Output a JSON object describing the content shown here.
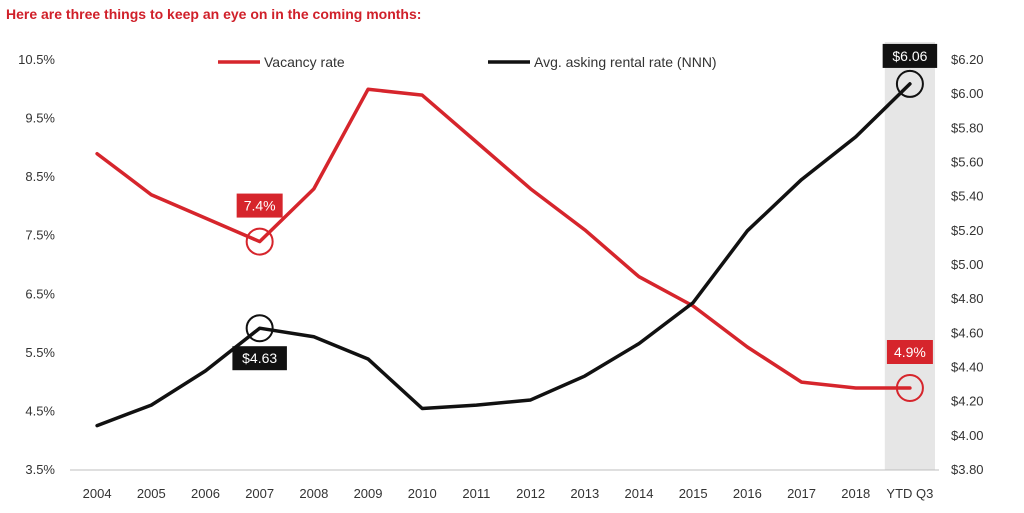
{
  "headline": "Here are three things to keep an eye on in the coming months:",
  "chart_data": {
    "type": "line",
    "title": "",
    "categories": [
      "2004",
      "2005",
      "2006",
      "2007",
      "2008",
      "2009",
      "2010",
      "2011",
      "2012",
      "2013",
      "2014",
      "2015",
      "2016",
      "2017",
      "2018",
      "YTD Q3"
    ],
    "y_left": {
      "ticks": [
        "3.5%",
        "4.5%",
        "5.5%",
        "6.5%",
        "7.5%",
        "8.5%",
        "9.5%",
        "10.5%"
      ],
      "ylim": [
        3.5,
        10.5
      ]
    },
    "y_right": {
      "ticks": [
        "$3.80",
        "$4.00",
        "$4.20",
        "$4.40",
        "$4.60",
        "$4.80",
        "$5.00",
        "$5.20",
        "$5.40",
        "$5.60",
        "$5.80",
        "$6.00",
        "$6.20"
      ],
      "ylim": [
        3.8,
        6.2
      ]
    },
    "series": [
      {
        "name": "Vacancy rate",
        "axis": "left",
        "color": "#d6252c",
        "values": [
          8.9,
          8.2,
          7.8,
          7.4,
          8.3,
          10.0,
          9.9,
          9.1,
          8.3,
          7.6,
          6.8,
          6.3,
          5.6,
          5.0,
          4.9,
          4.9
        ]
      },
      {
        "name": "Avg. asking rental rate (NNN)",
        "axis": "right",
        "color": "#111111",
        "values": [
          4.06,
          4.18,
          4.38,
          4.63,
          4.58,
          4.45,
          4.16,
          4.18,
          4.21,
          4.35,
          4.54,
          4.78,
          5.2,
          5.5,
          5.75,
          6.06
        ]
      }
    ],
    "callouts": [
      {
        "text": "7.4%",
        "series": 0,
        "index": 3
      },
      {
        "text": "4.9%",
        "series": 0,
        "index": 15
      },
      {
        "text": "$4.63",
        "series": 1,
        "index": 3
      },
      {
        "text": "$6.06",
        "series": 1,
        "index": 15
      }
    ],
    "highlight_category": "YTD Q3",
    "legend_position": "top"
  }
}
